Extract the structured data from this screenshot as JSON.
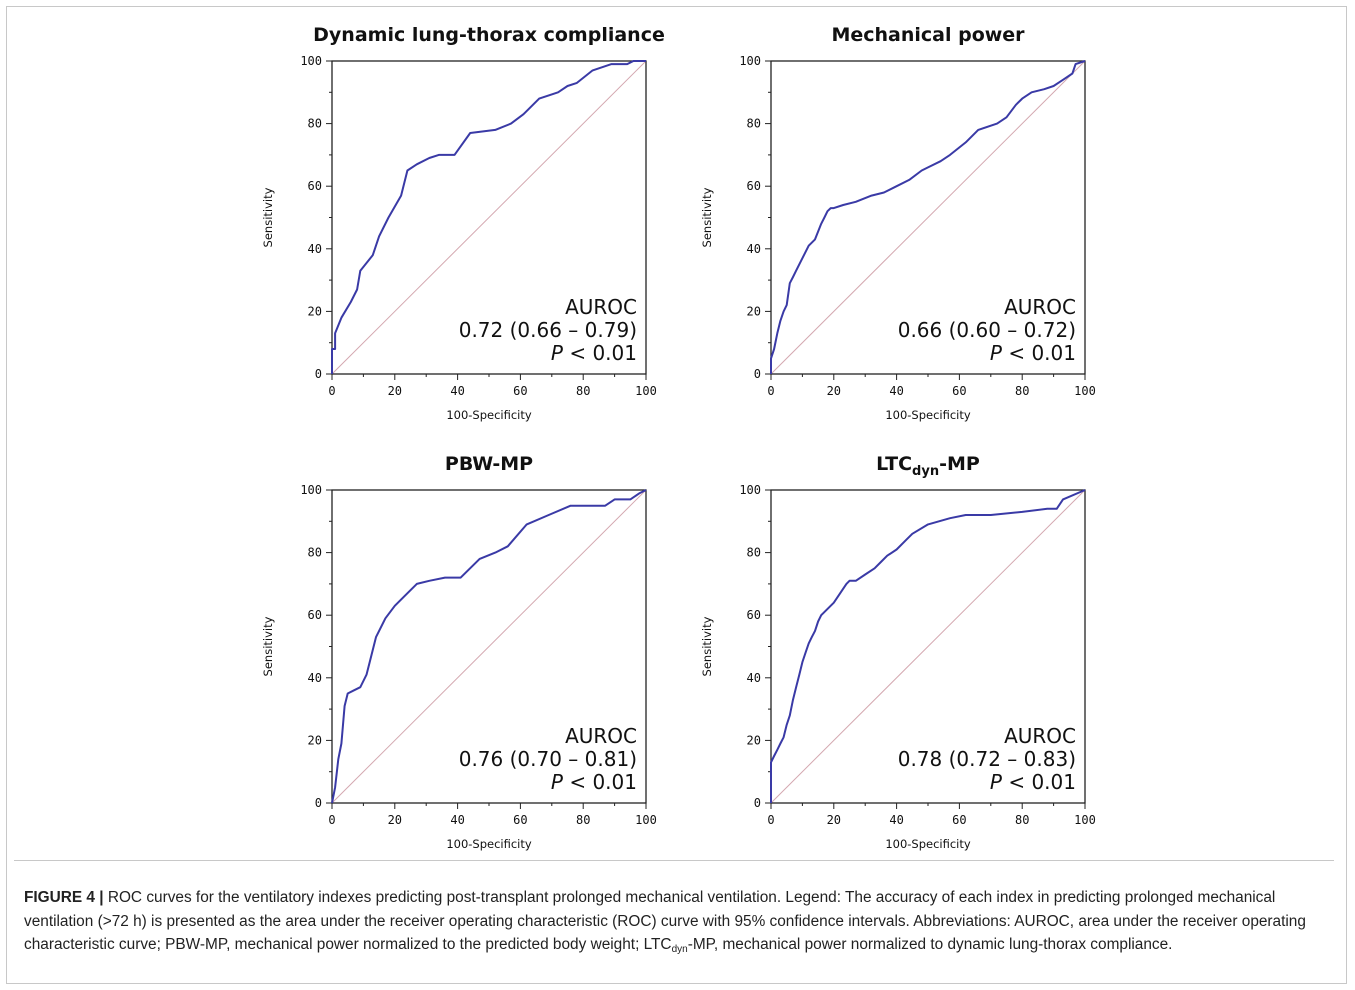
{
  "colors": {
    "roc_curve": "#3a3aa6",
    "reference_line": "#d4a8b0",
    "axis": "#222222"
  },
  "axes_common": {
    "xlabel": "100-Specificity",
    "ylabel": "Sensitivity",
    "xlim": [
      0,
      100
    ],
    "ylim": [
      0,
      100
    ],
    "ticks": [
      "0",
      "20",
      "40",
      "60",
      "80",
      "100"
    ],
    "auroc_label": "AUROC",
    "p_label": "P",
    "p_value_text": "< 0.01"
  },
  "chart_data": [
    {
      "type": "line",
      "title": "Dynamic lung-thorax compliance",
      "auroc_text": "0.72 (0.66 – 0.79)",
      "series": [
        {
          "x": [
            0,
            0,
            1,
            1,
            3,
            6,
            8,
            9,
            13,
            15,
            18,
            22,
            24,
            27,
            31,
            34,
            39,
            44,
            52,
            57,
            61,
            63,
            66,
            69,
            72,
            75,
            78,
            83,
            89,
            94,
            96,
            100
          ],
          "y": [
            0,
            8,
            8,
            13,
            18,
            23,
            27,
            33,
            38,
            44,
            50,
            57,
            65,
            67,
            69,
            70,
            70,
            77,
            78,
            80,
            83,
            85,
            88,
            89,
            90,
            92,
            93,
            97,
            99,
            99,
            100,
            100
          ]
        }
      ]
    },
    {
      "type": "line",
      "title": "Mechanical power",
      "auroc_text": "0.66 (0.60 – 0.72)",
      "series": [
        {
          "x": [
            0,
            0,
            1,
            2,
            3,
            4,
            5,
            6,
            7,
            8,
            10,
            12,
            14,
            16,
            17,
            18,
            19,
            20,
            23,
            27,
            32,
            36,
            40,
            44,
            48,
            50,
            54,
            57,
            62,
            66,
            72,
            75,
            78,
            80,
            83,
            87,
            90,
            93,
            96,
            97,
            100
          ],
          "y": [
            0,
            5,
            8,
            13,
            17,
            20,
            22,
            29,
            31,
            33,
            37,
            41,
            43,
            48,
            50,
            52,
            53,
            53,
            54,
            55,
            57,
            58,
            60,
            62,
            65,
            66,
            68,
            70,
            74,
            78,
            80,
            82,
            86,
            88,
            90,
            91,
            92,
            94,
            96,
            99,
            100
          ]
        }
      ]
    },
    {
      "type": "line",
      "title": "PBW-MP",
      "title_main": "",
      "auroc_text": "0.76 (0.70 – 0.81)",
      "series": [
        {
          "x": [
            0,
            1,
            2,
            3,
            4,
            5,
            7,
            9,
            11,
            12,
            14,
            17,
            20,
            23,
            27,
            31,
            36,
            41,
            47,
            52,
            56,
            62,
            69,
            76,
            87,
            90,
            95,
            98,
            100
          ],
          "y": [
            0,
            5,
            14,
            19,
            31,
            35,
            36,
            37,
            41,
            45,
            53,
            59,
            63,
            66,
            70,
            71,
            72,
            72,
            78,
            80,
            82,
            89,
            92,
            95,
            95,
            97,
            97,
            99,
            100
          ]
        }
      ]
    },
    {
      "type": "line",
      "title_main": "LTC",
      "title_sub": "dyn",
      "title_suffix": "-MP",
      "auroc_text": "0.78 (0.72 – 0.83)",
      "series": [
        {
          "x": [
            0,
            0,
            1,
            2,
            3,
            4,
            5,
            6,
            7,
            8,
            9,
            10,
            11,
            12,
            13,
            14,
            15,
            16,
            18,
            20,
            22,
            24,
            25,
            27,
            30,
            33,
            35,
            37,
            40,
            43,
            45,
            50,
            57,
            62,
            70,
            80,
            88,
            91,
            93,
            100
          ],
          "y": [
            0,
            13,
            15,
            17,
            19,
            21,
            25,
            28,
            33,
            37,
            41,
            45,
            48,
            51,
            53,
            55,
            58,
            60,
            62,
            64,
            67,
            70,
            71,
            71,
            73,
            75,
            77,
            79,
            81,
            84,
            86,
            89,
            91,
            92,
            92,
            93,
            94,
            94,
            97,
            100
          ]
        }
      ]
    }
  ],
  "caption": {
    "label": "FIGURE 4 |",
    "text_1": " ROC curves for the ventilatory indexes predicting post-transplant prolonged mechanical ventilation. Legend: The accuracy of each index in predicting prolonged mechanical ventilation (>72 h) is presented as the area under the receiver operating characteristic (ROC) curve with 95% confidence intervals. Abbreviations: AUROC, area under the receiver operating characteristic curve; PBW-MP, mechanical power normalized to the predicted body weight; LTC",
    "sub": "dyn",
    "text_2": "-MP, mechanical power normalized to dynamic lung-thorax compliance."
  }
}
